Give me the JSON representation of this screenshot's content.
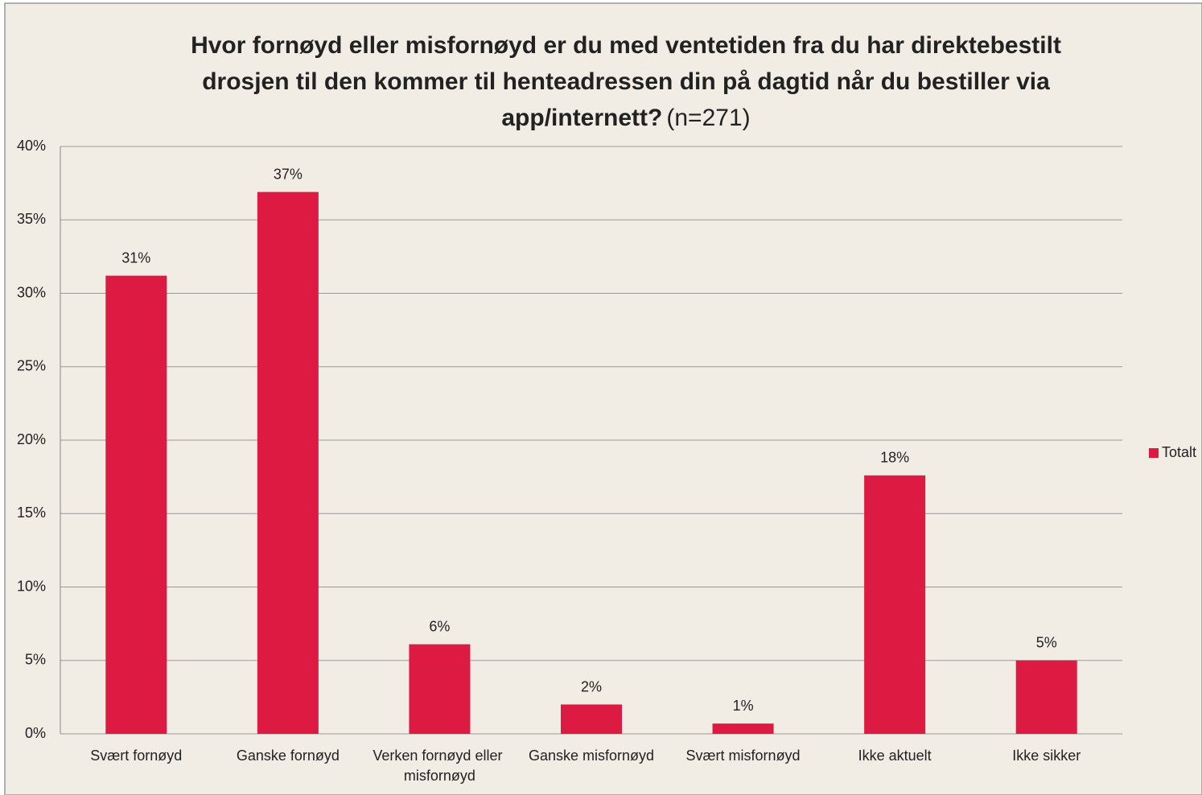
{
  "chart_data": {
    "type": "bar",
    "title_lines": [
      "Hvor fornøyd eller misfornøyd er du med ventetiden fra du har direktebestilt",
      "drosjen til den kommer til henteadressen din på dagtid når du bestiller via",
      "app/internett?"
    ],
    "subtitle": "(n=271)",
    "categories": [
      "Svært fornøyd",
      "Ganske fornøyd",
      "Verken fornøyd eller misfornøyd",
      "Ganske misfornøyd",
      "Svært misfornøyd",
      "Ikke aktuelt",
      "Ikke sikker"
    ],
    "series": [
      {
        "name": "Totalt",
        "color": "#dc1a42",
        "values": [
          31.2,
          36.9,
          6.1,
          2.0,
          0.7,
          17.6,
          5.0
        ],
        "value_labels": [
          "31%",
          "37%",
          "6%",
          "2%",
          "1%",
          "18%",
          "5%"
        ]
      }
    ],
    "ylim": [
      0,
      40
    ],
    "yticks": [
      {
        "value": 0,
        "label": "0%"
      },
      {
        "value": 5,
        "label": "5%"
      },
      {
        "value": 10,
        "label": "10%"
      },
      {
        "value": 15,
        "label": "15%"
      },
      {
        "value": 20,
        "label": "20%"
      },
      {
        "value": 25,
        "label": "25%"
      },
      {
        "value": 30,
        "label": "30%"
      },
      {
        "value": 35,
        "label": "35%"
      },
      {
        "value": 40,
        "label": "40%"
      }
    ],
    "grid": true,
    "legend": "right"
  }
}
